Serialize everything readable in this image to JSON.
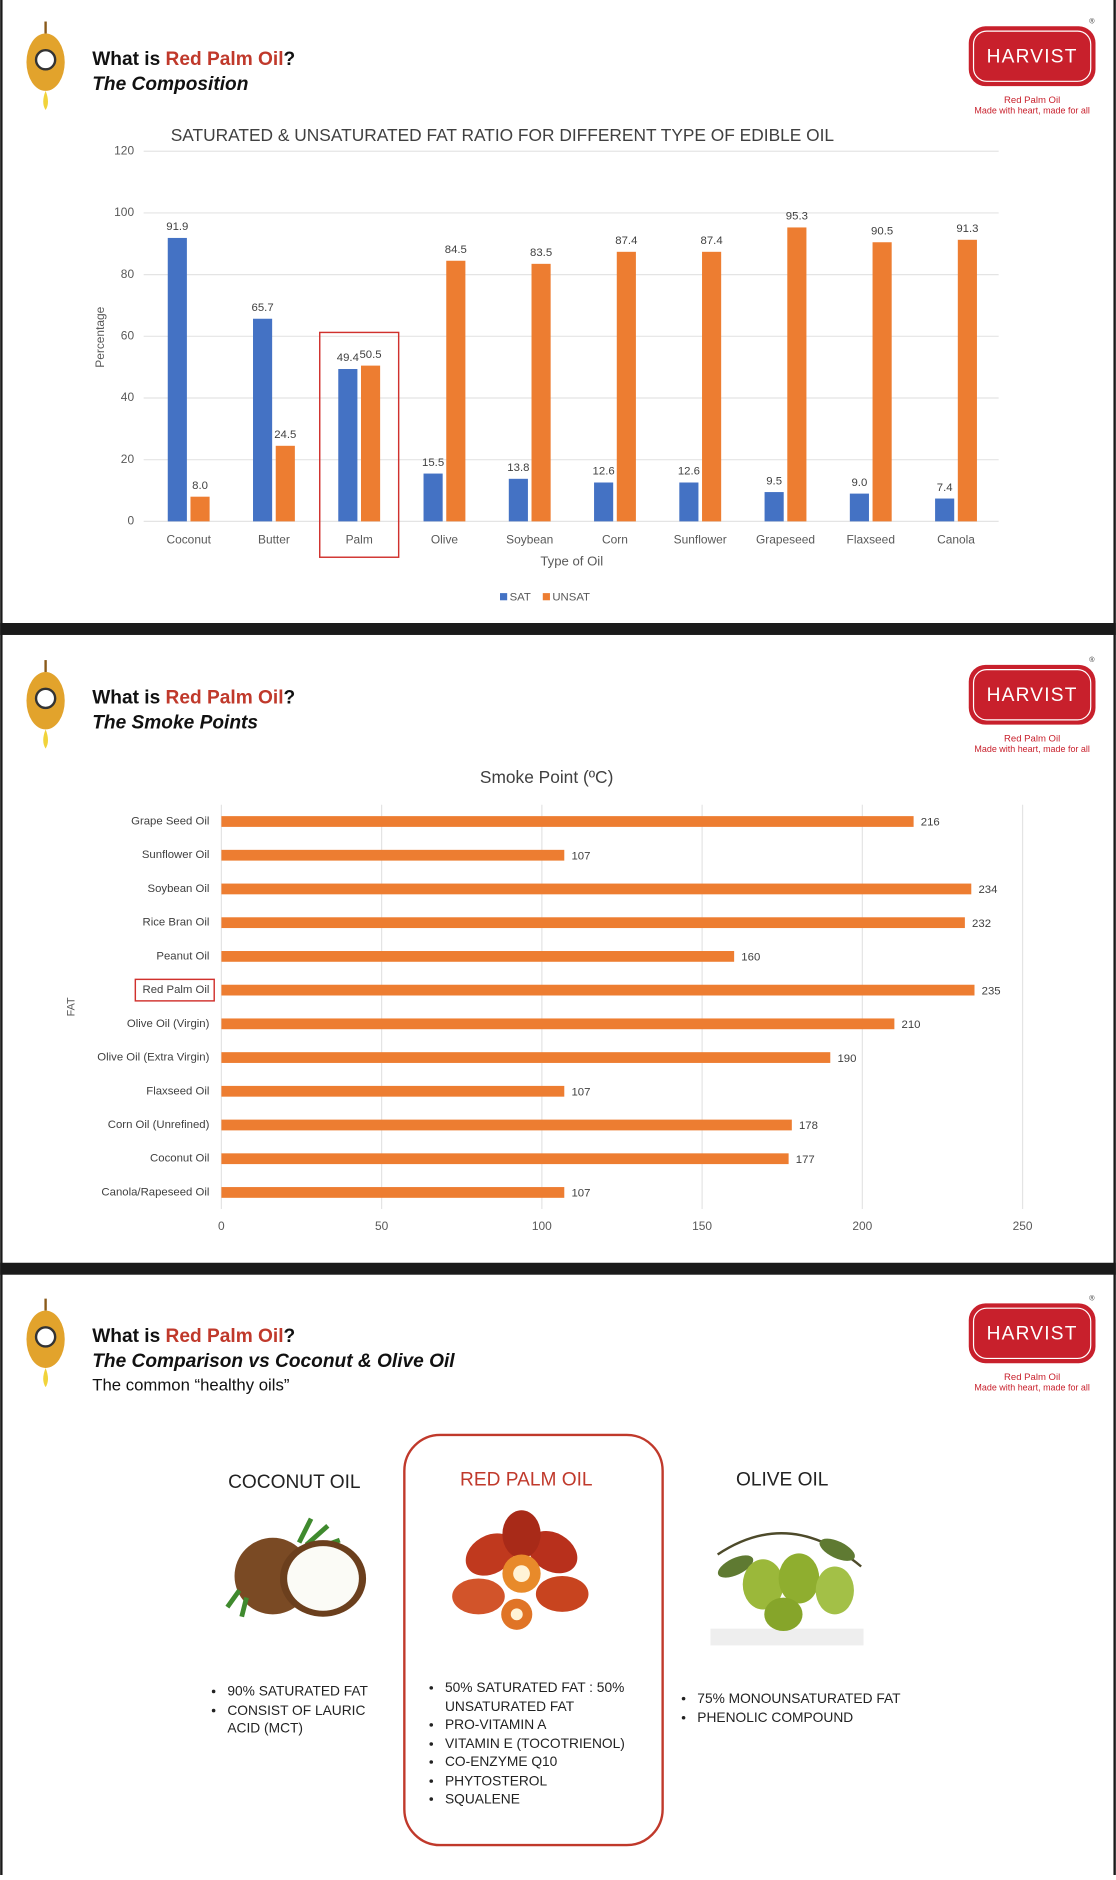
{
  "brand": {
    "name": "HARVIST",
    "product": "Red Palm Oil",
    "tagline": "Made with heart, made for all"
  },
  "slides": [
    {
      "title_prefix": "What is ",
      "title_highlight": "Red Palm Oil",
      "title_suffix": "?",
      "subtitle": "The Composition"
    },
    {
      "title_prefix": "What is ",
      "title_highlight": "Red Palm Oil",
      "title_suffix": "?",
      "subtitle": "The Smoke Points"
    },
    {
      "title_prefix": "What is ",
      "title_highlight": "Red Palm Oil",
      "title_suffix": "?",
      "subtitle": "The Comparison vs Coconut & Olive Oil",
      "note": "The common “healthy oils”"
    }
  ],
  "chart_data": [
    {
      "type": "bar",
      "title": "SATURATED & UNSATURATED FAT RATIO FOR DIFFERENT TYPE OF EDIBLE OIL",
      "x_label": "Type of Oil",
      "y_label": "Percentage",
      "categories": [
        "Coconut",
        "Butter",
        "Palm",
        "Olive",
        "Soybean",
        "Corn",
        "Sunflower",
        "Grapeseed",
        "Flaxseed",
        "Canola"
      ],
      "series": [
        {
          "name": "SAT",
          "color": "#4472c4",
          "values": [
            91.9,
            65.7,
            49.4,
            15.5,
            13.8,
            12.6,
            12.6,
            9.5,
            9.0,
            7.4
          ],
          "value_labels": [
            "91.9",
            "65.7",
            "49.4",
            "15.5",
            "13.8",
            "12.6",
            "12.6",
            "9.5",
            "9.0",
            "7.4"
          ]
        },
        {
          "name": "UNSAT",
          "color": "#ed7d31",
          "values": [
            8.0,
            24.5,
            50.5,
            84.5,
            83.5,
            87.4,
            87.4,
            95.3,
            90.5,
            91.3
          ],
          "value_labels": [
            "8.0",
            "24.5",
            "50.5",
            "84.5",
            "83.5",
            "87.4",
            "87.4",
            "95.3",
            "90.5",
            "91.3"
          ]
        }
      ],
      "ylim": [
        0,
        120
      ],
      "yticks": [
        0,
        20,
        40,
        60,
        80,
        100,
        120
      ],
      "grid": true,
      "legend": "bottom",
      "highlight": "Palm"
    },
    {
      "type": "hbar",
      "title": "Smoke Point (ºC)",
      "y_label": "FAT",
      "categories": [
        "Grape Seed Oil",
        "Sunflower Oil",
        "Soybean Oil",
        "Rice Bran Oil",
        "Peanut Oil",
        "Red Palm Oil",
        "Olive Oil (Virgin)",
        "Olive Oil (Extra Virgin)",
        "Flaxseed Oil",
        "Corn Oil  (Unrefined)",
        "Coconut Oil",
        "Canola/Rapeseed Oil"
      ],
      "values": [
        216,
        107,
        234,
        232,
        160,
        235,
        210,
        190,
        107,
        178,
        177,
        107
      ],
      "color": "#ed7d31",
      "xlim": [
        0,
        250
      ],
      "xticks": [
        0,
        50,
        100,
        150,
        200,
        250
      ],
      "grid": true,
      "highlight": "Red Palm Oil"
    }
  ],
  "comparison": [
    {
      "name": "COCONUT OIL",
      "items": [
        "90% SATURATED FAT",
        "CONSIST OF LAURIC ACID (MCT)"
      ]
    },
    {
      "name": "RED PALM OIL",
      "items": [
        "50% SATURATED FAT : 50% UNSATURATED FAT",
        "PRO-VITAMIN A",
        "VITAMIN E (TOCOTRIENOL)",
        "CO-ENZYME Q10",
        "PHYTOSTEROL",
        "SQUALENE"
      ]
    },
    {
      "name": "OLIVE OIL",
      "items": [
        "75% MONOUNSATURATED FAT",
        "PHENOLIC COMPOUND"
      ]
    }
  ]
}
